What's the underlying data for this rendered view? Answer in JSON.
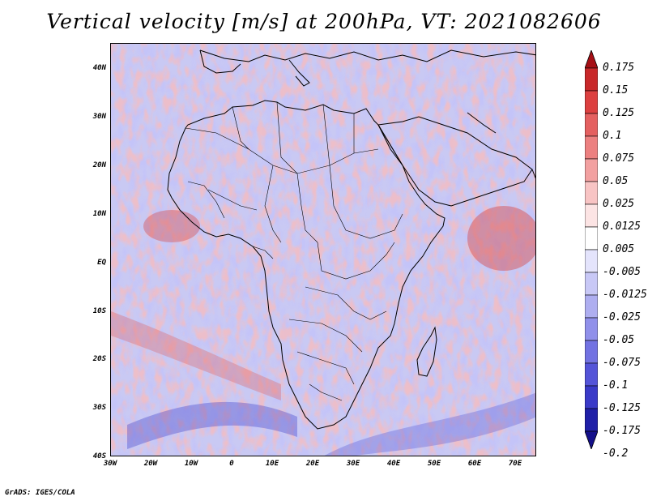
{
  "title": "Vertical velocity [m/s] at 200hPa, VT: 2021082606",
  "footer": "GrADS: IGES/COLA",
  "map": {
    "region": "Africa",
    "lon_range": [
      -30,
      76
    ],
    "lat_range": [
      -40,
      46
    ],
    "lat_labels": [
      "40N",
      "30N",
      "20N",
      "10N",
      "EQ",
      "10S",
      "20S",
      "30S",
      "40S"
    ],
    "lon_labels": [
      "30W",
      "20W",
      "10W",
      "0",
      "10E",
      "20E",
      "30E",
      "40E",
      "50E",
      "60E",
      "70E"
    ],
    "field": "vertical velocity",
    "colors": {
      "land_outline": "#000000",
      "positive": "#e05050",
      "negative": "#5050e0"
    }
  },
  "colorbar": {
    "labels": [
      "0.175",
      "0.15",
      "0.125",
      "0.1",
      "0.075",
      "0.05",
      "0.025",
      "0.0125",
      "0.005",
      "-0.005",
      "-0.0125",
      "-0.025",
      "-0.05",
      "-0.075",
      "-0.1",
      "-0.125",
      "-0.175",
      "-0.2"
    ],
    "colors": [
      "#a50f15",
      "#c8282a",
      "#dc4040",
      "#e46060",
      "#ec8080",
      "#f2a0a0",
      "#f8c4c4",
      "#fce4e4",
      "#ffffff",
      "#e4e4fc",
      "#c8c8f6",
      "#aeaef0",
      "#9090ea",
      "#7272e2",
      "#5454d8",
      "#3a3ac8",
      "#2020a8",
      "#14108a"
    ]
  }
}
